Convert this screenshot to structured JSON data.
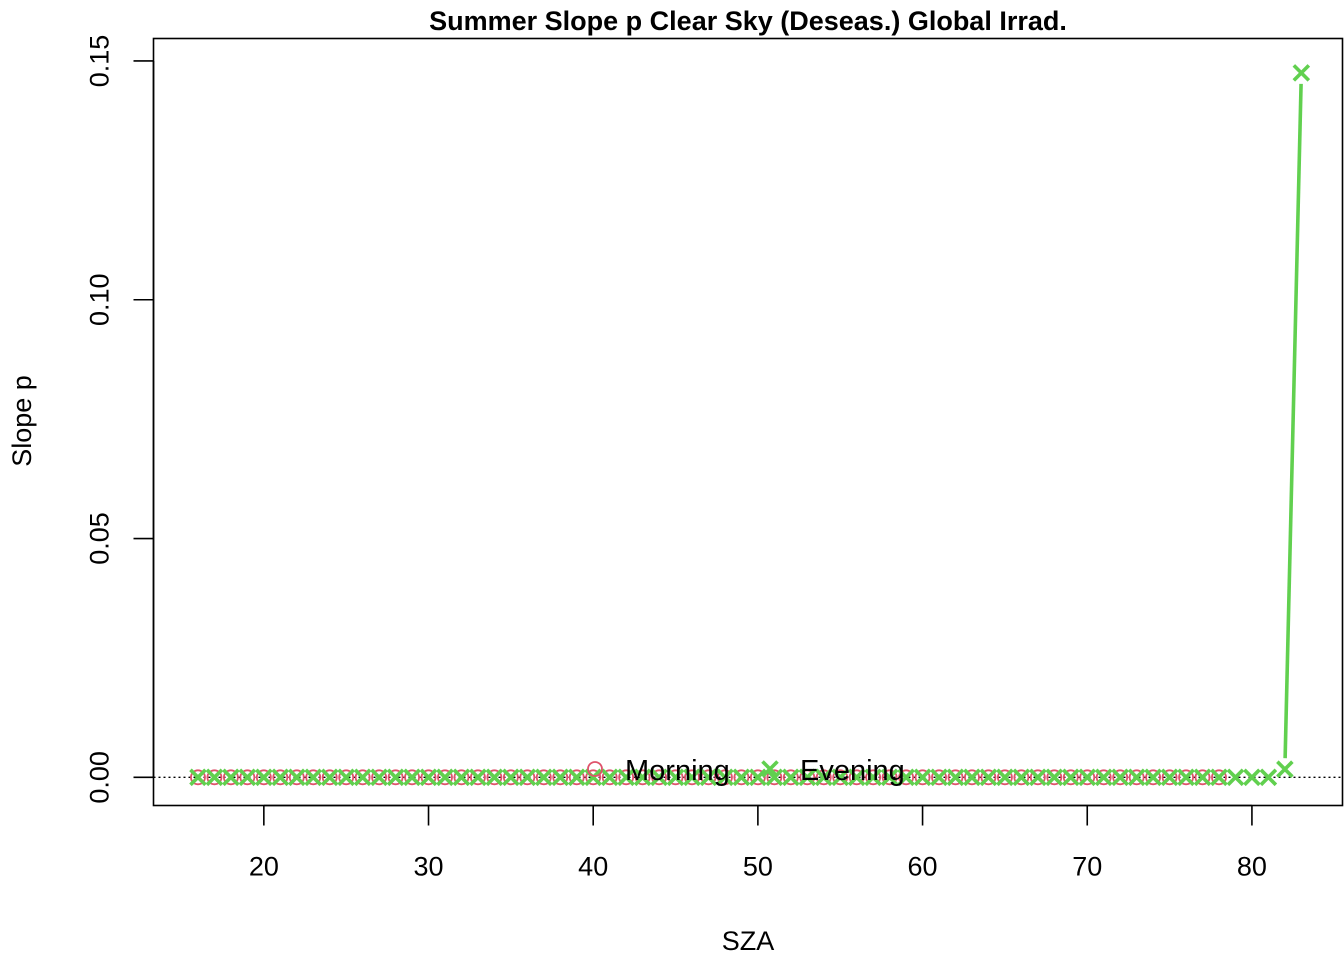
{
  "chart_data": {
    "type": "line",
    "title": "Summer Slope p Clear Sky (Deseas.) Global Irrad.",
    "xlabel": "SZA",
    "ylabel": "Slope p",
    "xlim": [
      13.3,
      85.5
    ],
    "ylim": [
      -0.0059,
      0.1547
    ],
    "x_ticks": [
      20,
      30,
      40,
      50,
      60,
      70,
      80
    ],
    "y_ticks": [
      0.0,
      0.05,
      0.1,
      0.15
    ],
    "x_tick_labels": [
      "20",
      "30",
      "40",
      "50",
      "60",
      "70",
      "80"
    ],
    "y_tick_labels": [
      "0.00",
      "0.05",
      "0.10",
      "0.15"
    ],
    "reference_line": {
      "y": 0,
      "style": "dotted"
    },
    "grid": false,
    "legend_position": "bottom-center",
    "series": [
      {
        "name": "Morning",
        "color": "#DF536B",
        "marker": "circle",
        "x": [
          16,
          17,
          18,
          19,
          20,
          21,
          22,
          23,
          24,
          25,
          26,
          27,
          28,
          29,
          30,
          31,
          32,
          33,
          34,
          35,
          36,
          37,
          38,
          39,
          40,
          41,
          42,
          43,
          44,
          45,
          46,
          47,
          48,
          49,
          50,
          51,
          52,
          53,
          54,
          55,
          56,
          57,
          58,
          59,
          60,
          61,
          62,
          63,
          64,
          65,
          66,
          67,
          68,
          69,
          70,
          71,
          72,
          73,
          74,
          75,
          76,
          77,
          78
        ],
        "y": [
          0,
          0,
          0,
          0,
          0,
          0,
          0,
          0,
          0,
          0,
          0,
          0,
          0,
          0,
          0,
          0,
          0,
          0,
          0,
          0,
          0,
          0,
          0,
          0,
          0,
          0,
          0,
          0,
          0,
          0,
          0,
          0,
          0,
          0,
          0,
          0,
          0,
          0,
          0,
          0,
          0,
          0,
          0,
          0,
          0,
          0,
          0,
          0,
          0,
          0,
          0,
          0,
          0,
          0,
          0,
          0,
          0,
          0,
          0,
          0,
          0,
          0,
          0
        ]
      },
      {
        "name": "Evening",
        "color": "#61D04F",
        "marker": "x",
        "x": [
          16,
          17,
          18,
          19,
          20,
          21,
          22,
          23,
          24,
          25,
          26,
          27,
          28,
          29,
          30,
          31,
          32,
          33,
          34,
          35,
          36,
          37,
          38,
          39,
          40,
          41,
          42,
          43,
          44,
          45,
          46,
          47,
          48,
          49,
          50,
          51,
          52,
          53,
          54,
          55,
          56,
          57,
          58,
          59,
          60,
          61,
          62,
          63,
          64,
          65,
          66,
          67,
          68,
          69,
          70,
          71,
          72,
          73,
          74,
          75,
          76,
          77,
          78,
          79,
          80,
          81,
          82,
          83
        ],
        "y": [
          0,
          0,
          0,
          0,
          0,
          0,
          0,
          0,
          0,
          0,
          0,
          0,
          0,
          0,
          0,
          0,
          0,
          0,
          0,
          0,
          0,
          0,
          0,
          0,
          0,
          0,
          0,
          0,
          0,
          0,
          0,
          0,
          0,
          0,
          0,
          0,
          0,
          0,
          0,
          0,
          0,
          0,
          0,
          0,
          0,
          0,
          0,
          0,
          0,
          0,
          0,
          0,
          0,
          0,
          0,
          0,
          0,
          0,
          0,
          0,
          0,
          0,
          0,
          0,
          0,
          0,
          0.0017,
          0.1475
        ]
      }
    ]
  }
}
